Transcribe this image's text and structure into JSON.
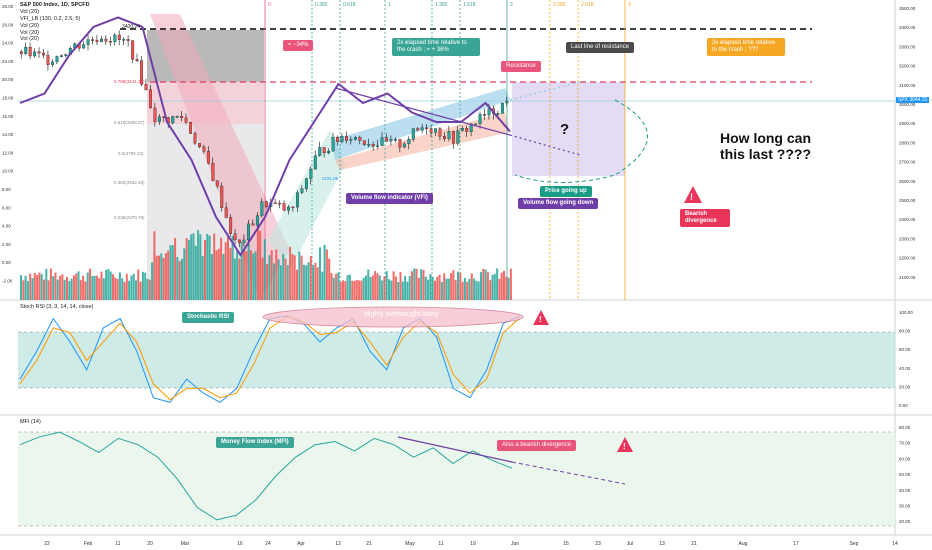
{
  "header": {
    "symbol": "S&P 500 Index, 1D, SPCFD",
    "indicators": [
      "Vol (20)",
      "VFI_LB (130, 0.2, 2.5, 5)",
      "Vol (20)",
      "Vol (20)",
      "Vol (20)"
    ]
  },
  "panes": {
    "stoch_title": "Stoch RSI (3, 3, 14, 14, close)",
    "mfi_title": "MFI (14)"
  },
  "annotations": {
    "drop": "≈ −34%",
    "elapsed_left": "2x elapsed time relative to the crash ; ≈ + 36%",
    "last_line": "Last line of resistance",
    "elapsed_right": "3x elapsed time relative to the crash ; ???",
    "resistance": "Resistance",
    "question": "?",
    "how_long_1": "How long can",
    "how_long_2": "this last ????",
    "price_up": "Price going up",
    "volume_down": "Volume flow going down",
    "vfi_label": "Volume flow indicator (VFI)",
    "bearish_div": "Bearish divergence",
    "stoch_label": "Stochastic RSI",
    "overbought": "Highly overbought lately",
    "mfi_label": "Money Flow Index (MFI)",
    "mfi_div": "Also a bearish divergence"
  },
  "price_labels": {
    "top": "3400.24",
    "fib786": "0.786(3141.30)",
    "fib618": "0.618(2958.07)",
    "fib5": "0.5(2795.23)",
    "fib382": "0.382(2632.45)",
    "fib236": "0.236(2470.78)",
    "low": "2191.86",
    "current": "SPX 3044.31"
  },
  "fib_time": [
    "0",
    "0.382",
    "0.618",
    "1",
    "1.382",
    "1.618",
    "2",
    "2.382",
    "2.618",
    "3"
  ],
  "axes": {
    "price_right": [
      "3500.00",
      "3400.00",
      "3300.00",
      "3200.00",
      "3100.00",
      "3000.00",
      "2900.00",
      "2800.00",
      "2700.00",
      "2600.00",
      "2500.00",
      "2400.00",
      "2300.00",
      "2200.00",
      "2100.00"
    ],
    "vfi_left": [
      "28.00",
      "26.00",
      "24.00",
      "22.00",
      "20.00",
      "18.00",
      "16.00",
      "14.00",
      "12.00",
      "10.00",
      "8.00",
      "6.00",
      "4.00",
      "2.00",
      "0.00",
      "-2.00"
    ],
    "stoch_right": [
      "100.00",
      "80.00",
      "60.00",
      "40.00",
      "20.00",
      "0.00"
    ],
    "mfi_right": [
      "80.00",
      "70.00",
      "60.00",
      "50.00",
      "40.00",
      "30.00",
      "20.00"
    ],
    "time": [
      "22",
      "Feb",
      "11",
      "20",
      "Mar",
      "16",
      "24",
      "Apr",
      "13",
      "21",
      "May",
      "11",
      "19",
      "Jun",
      "15",
      "23",
      "Jul",
      "13",
      "21",
      "Aug",
      "17",
      "Sep",
      "14"
    ]
  },
  "colors": {
    "bull": "#26a69a",
    "bear": "#ef5350",
    "vfi": "#6f3ea8",
    "stoch_k": "#2196f3",
    "stoch_d": "#ff9800",
    "mfi": "#26a69a",
    "green_box": "#3aa597",
    "pink_box": "#e9557a",
    "orange_box": "#f5a623",
    "dark_box": "#4a4a4a"
  },
  "chart_data": [
    {
      "type": "candlestick",
      "title": "S&P 500 Index, 1D, SPCFD",
      "x": [
        "2020-01-20",
        "2020-01-27",
        "2020-02-03",
        "2020-02-10",
        "2020-02-17",
        "2020-02-24",
        "2020-03-02",
        "2020-03-09",
        "2020-03-16",
        "2020-03-23",
        "2020-03-30",
        "2020-04-06",
        "2020-04-13",
        "2020-04-20",
        "2020-04-27",
        "2020-05-04",
        "2020-05-11",
        "2020-05-18",
        "2020-05-26"
      ],
      "series": [
        {
          "name": "close",
          "values": [
            3300,
            3260,
            3330,
            3380,
            3340,
            2950,
            2970,
            2710,
            2300,
            2540,
            2490,
            2790,
            2880,
            2840,
            2830,
            2930,
            2860,
            2960,
            3044
          ]
        }
      ],
      "levels": {
        "top": 3400.24,
        "fib_0_786": 3141.3,
        "fib_0_618": 2958.07,
        "fib_0_5": 2795.23,
        "fib_0_382": 2632.45,
        "fib_0_236": 2470.78,
        "low": 2191.86,
        "current": 3044.31
      },
      "ylim": [
        2080,
        3520
      ]
    },
    {
      "type": "line",
      "title": "VFI_LB (130, 0.2, 2.5, 5)",
      "series": [
        {
          "name": "VFI",
          "values": [
            18,
            19,
            23,
            26,
            27,
            26,
            16,
            12,
            6,
            2,
            6,
            12,
            16,
            20,
            18,
            19,
            17,
            16,
            16,
            18,
            15
          ]
        }
      ],
      "ylim": [
        -2,
        28
      ]
    },
    {
      "type": "line",
      "title": "Stoch RSI (3, 3, 14, 14, close)",
      "series": [
        {
          "name": "K",
          "values": [
            30,
            60,
            95,
            70,
            40,
            85,
            95,
            60,
            10,
            5,
            30,
            15,
            5,
            20,
            60,
            95,
            98,
            90,
            70,
            85,
            95,
            60,
            40,
            85,
            95,
            75,
            20,
            10,
            40,
            90,
            98
          ]
        },
        {
          "name": "D",
          "values": [
            25,
            50,
            85,
            80,
            50,
            70,
            90,
            70,
            25,
            8,
            20,
            20,
            10,
            15,
            45,
            85,
            97,
            92,
            78,
            80,
            92,
            70,
            45,
            75,
            92,
            80,
            35,
            15,
            30,
            80,
            96
          ]
        }
      ],
      "ylim": [
        0,
        100
      ]
    },
    {
      "type": "line",
      "title": "MFI (14)",
      "series": [
        {
          "name": "MFI",
          "values": [
            70,
            75,
            78,
            72,
            65,
            74,
            70,
            62,
            48,
            30,
            22,
            25,
            35,
            50,
            62,
            70,
            72,
            66,
            74,
            70,
            62,
            68,
            58,
            66,
            60,
            55
          ]
        }
      ],
      "ylim": [
        20,
        80
      ]
    }
  ]
}
